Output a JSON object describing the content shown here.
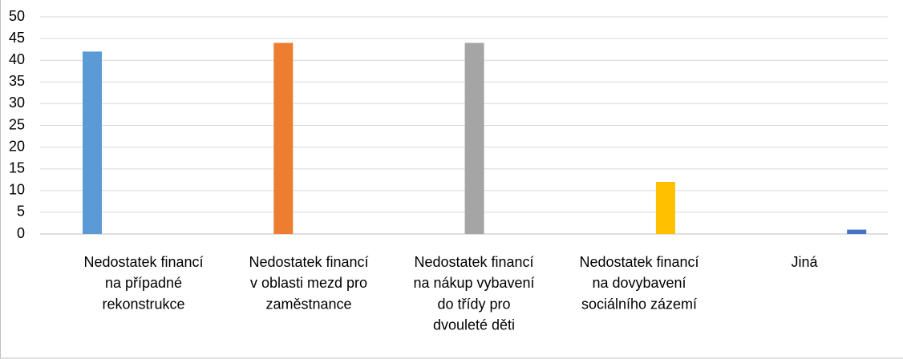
{
  "chart_data": {
    "type": "bar",
    "categories": [
      [
        "Nedostatek financí",
        "na případné",
        "rekonstrukce"
      ],
      [
        "Nedostatek financí",
        "v oblasti mezd pro",
        "zaměstnance"
      ],
      [
        "Nedostatek financí",
        "na nákup vybavení",
        "do třídy pro",
        "dvouleté děti"
      ],
      [
        "Nedostatek financí",
        "na dovybavení",
        "sociálního zázemí"
      ],
      [
        "Jiná"
      ]
    ],
    "values": [
      42,
      44,
      44,
      12,
      1
    ],
    "colors": [
      "#5b9bd5",
      "#ed7d31",
      "#a5a5a5",
      "#ffc000",
      "#4472c4"
    ],
    "ylim": [
      0,
      50
    ],
    "yticks": [
      0,
      5,
      10,
      15,
      20,
      25,
      30,
      35,
      40,
      45,
      50
    ],
    "grid": true
  }
}
